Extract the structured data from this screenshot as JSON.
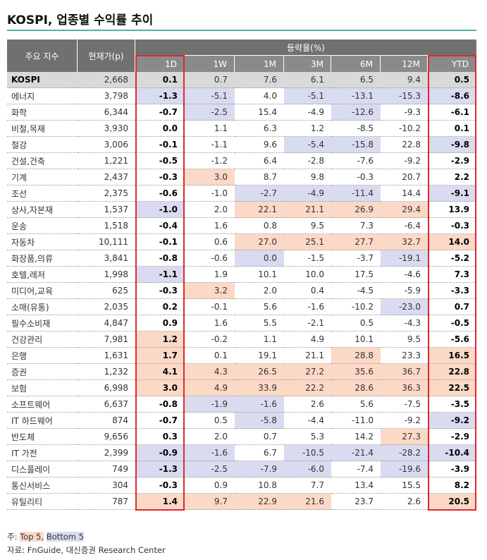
{
  "title": "KOSPI, 업종별 수익률 추이",
  "table": {
    "header": {
      "name": "주요 지수",
      "price": "현재가(p)",
      "group": "등락율(%)",
      "periods": [
        "1D",
        "1W",
        "1M",
        "3M",
        "6M",
        "12M",
        "YTD"
      ]
    },
    "rows": [
      [
        "KOSPI",
        "2,668",
        "0.1",
        "0.7",
        "7.6",
        "6.1",
        "6.5",
        "9.4",
        "0.5"
      ],
      [
        "에너지",
        "3,798",
        "-1.3",
        "-5.1",
        "4.0",
        "-5.1",
        "-13.1",
        "-15.3",
        "-8.6"
      ],
      [
        "화학",
        "6,344",
        "-0.7",
        "-2.5",
        "15.4",
        "-4.9",
        "-12.6",
        "-9.3",
        "-6.1"
      ],
      [
        "비철,목재",
        "3,930",
        "0.0",
        "1.1",
        "6.3",
        "1.2",
        "-8.5",
        "-10.2",
        "0.1"
      ],
      [
        "철강",
        "3,006",
        "-0.1",
        "-1.1",
        "9.6",
        "-5.4",
        "-15.8",
        "22.8",
        "-9.8"
      ],
      [
        "건설,건축",
        "1,221",
        "-0.5",
        "-1.2",
        "6.4",
        "-2.8",
        "-7.6",
        "-9.2",
        "-2.9"
      ],
      [
        "기계",
        "2,437",
        "-0.3",
        "3.0",
        "8.7",
        "9.8",
        "-0.3",
        "20.7",
        "2.2"
      ],
      [
        "조선",
        "2,375",
        "-0.6",
        "-1.0",
        "-2.7",
        "-4.9",
        "-11.4",
        "14.4",
        "-9.1"
      ],
      [
        "상사,자본재",
        "1,537",
        "-1.0",
        "2.0",
        "22.1",
        "21.1",
        "26.9",
        "29.4",
        "13.9"
      ],
      [
        "운송",
        "1,518",
        "-0.4",
        "1.6",
        "0.8",
        "9.5",
        "7.3",
        "-6.4",
        "-0.3"
      ],
      [
        "자동차",
        "10,111",
        "-0.1",
        "0.6",
        "27.0",
        "25.1",
        "27.7",
        "32.7",
        "14.0"
      ],
      [
        "화장품,의류",
        "3,841",
        "-0.8",
        "-0.6",
        "0.0",
        "-1.5",
        "-3.7",
        "-19.1",
        "-5.2"
      ],
      [
        "호텔,레저",
        "1,998",
        "-1.1",
        "1.9",
        "10.1",
        "10.0",
        "17.5",
        "-4.6",
        "7.3"
      ],
      [
        "미디어,교육",
        "625",
        "-0.3",
        "3.2",
        "2.0",
        "0.4",
        "-4.5",
        "-5.9",
        "-3.3"
      ],
      [
        "소매(유통)",
        "2,035",
        "0.2",
        "-0.1",
        "5.6",
        "-1.6",
        "-10.2",
        "-23.0",
        "0.7"
      ],
      [
        "필수소비재",
        "4,847",
        "0.9",
        "1.6",
        "5.5",
        "-2.1",
        "0.5",
        "-4.3",
        "-0.5"
      ],
      [
        "건강관리",
        "7,981",
        "1.2",
        "-0.2",
        "1.1",
        "4.9",
        "10.1",
        "9.5",
        "-5.6"
      ],
      [
        "은행",
        "1,631",
        "1.7",
        "0.1",
        "19.1",
        "21.1",
        "28.8",
        "23.3",
        "16.5"
      ],
      [
        "증권",
        "1,232",
        "4.1",
        "4.3",
        "26.5",
        "27.2",
        "35.6",
        "36.7",
        "22.8"
      ],
      [
        "보험",
        "6,998",
        "3.0",
        "4.9",
        "33.9",
        "22.2",
        "28.6",
        "36.3",
        "22.5"
      ],
      [
        "소프트웨어",
        "6,637",
        "-0.8",
        "-1.9",
        "-1.6",
        "2.6",
        "5.6",
        "-7.5",
        "-3.5"
      ],
      [
        "IT 하드웨어",
        "874",
        "-0.7",
        "0.5",
        "-5.8",
        "-4.4",
        "-11.0",
        "-9.2",
        "-9.2"
      ],
      [
        "반도체",
        "9,656",
        "0.3",
        "2.0",
        "0.7",
        "5.3",
        "14.2",
        "27.3",
        "-2.9"
      ],
      [
        "IT 가전",
        "2,399",
        "-0.9",
        "-1.6",
        "6.7",
        "-10.5",
        "-21.4",
        "-28.2",
        "-10.4"
      ],
      [
        "디스플레이",
        "749",
        "-1.3",
        "-2.5",
        "-7.9",
        "-6.0",
        "-7.4",
        "-19.6",
        "-3.9"
      ],
      [
        "통신서비스",
        "304",
        "-0.3",
        "0.9",
        "10.8",
        "7.7",
        "13.4",
        "15.5",
        "8.2"
      ],
      [
        "유틸리티",
        "787",
        "1.4",
        "9.7",
        "22.9",
        "21.6",
        "23.7",
        "2.6",
        "20.5"
      ]
    ]
  },
  "note": {
    "prefix": "주:",
    "top": "Top 5,",
    "bottom": "Bottom 5"
  },
  "source": "자료: FnGuide, 대신증권 Research Center"
}
